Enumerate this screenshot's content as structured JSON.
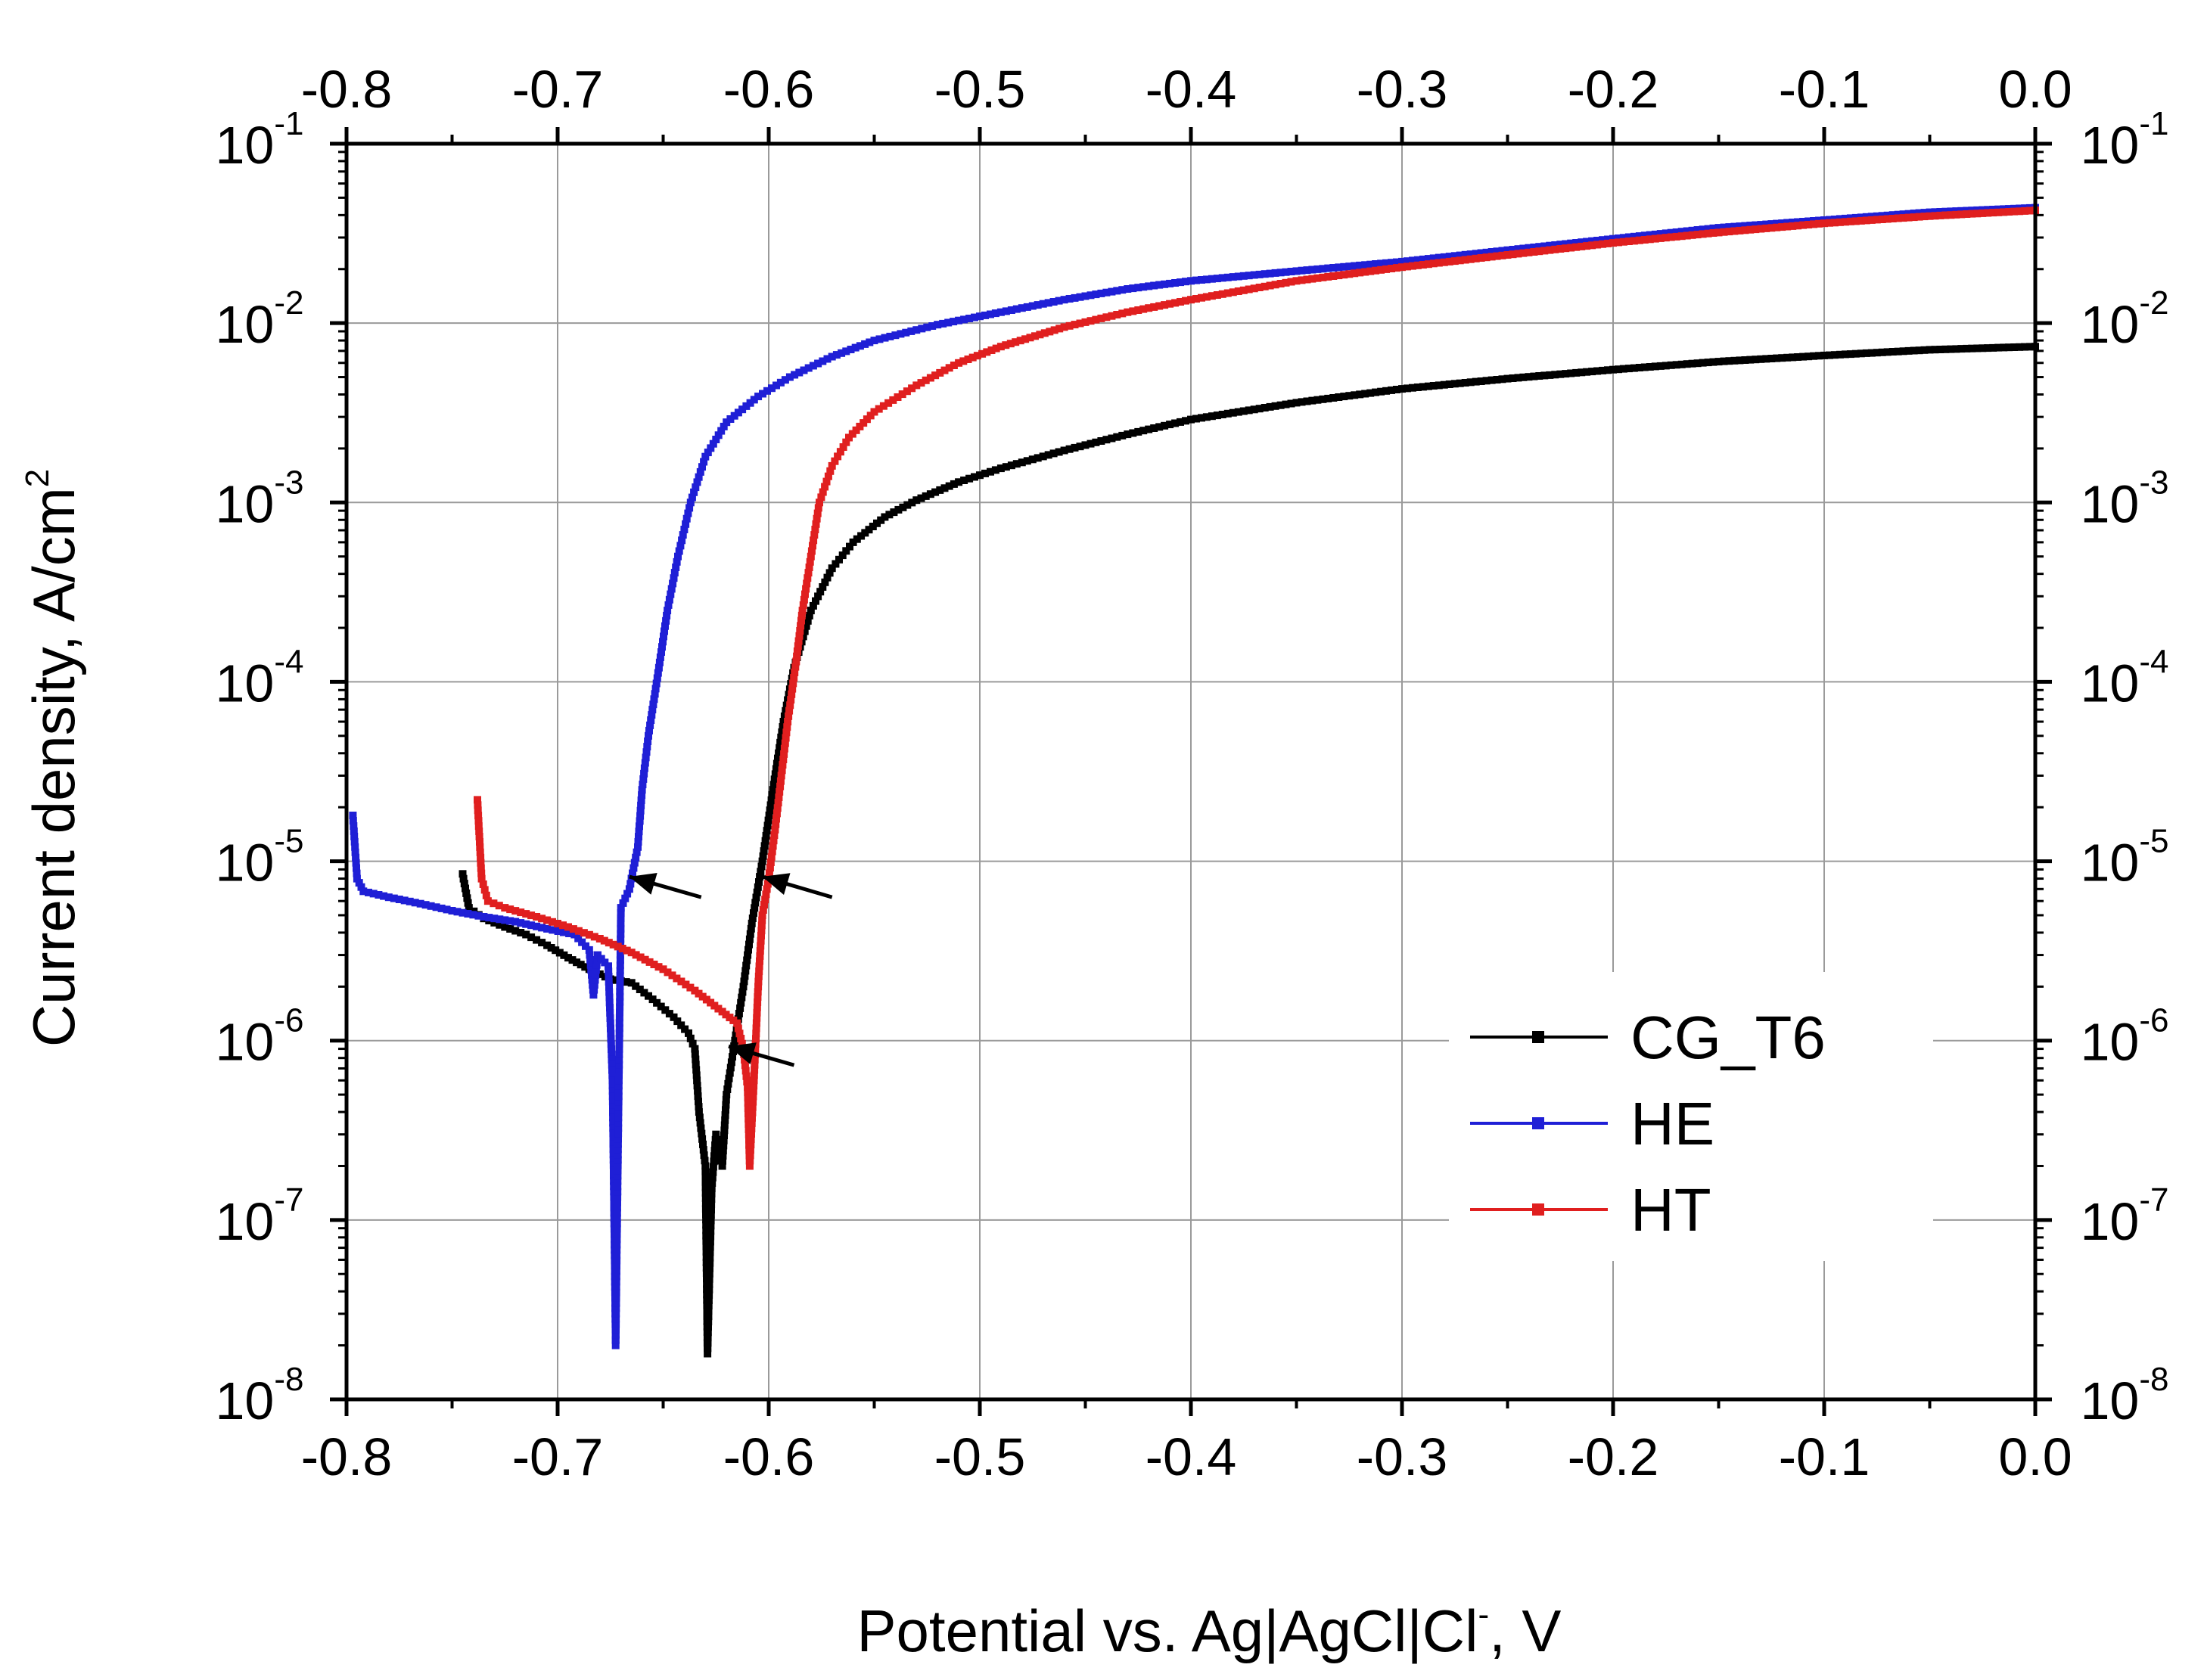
{
  "chart_data": {
    "type": "line",
    "xlabel": "Potential vs. Ag|AgCl|Cl",
    "xlabel_superscript": "-",
    "xlabel_suffix": ", V",
    "ylabel": "Current density, A/cm",
    "ylabel_superscript": "2",
    "yscale": "log",
    "xlim": [
      -0.8,
      0.0
    ],
    "ylim": [
      1e-08,
      0.1
    ],
    "grid": true,
    "legend_position": "lower-right",
    "x_ticks": [
      "-0.8",
      "-0.7",
      "-0.6",
      "-0.5",
      "-0.4",
      "-0.3",
      "-0.2",
      "-0.1",
      "0.0"
    ],
    "y_ticks": [
      {
        "base": "10",
        "exp": "-8"
      },
      {
        "base": "10",
        "exp": "-7"
      },
      {
        "base": "10",
        "exp": "-6"
      },
      {
        "base": "10",
        "exp": "-5"
      },
      {
        "base": "10",
        "exp": "-4"
      },
      {
        "base": "10",
        "exp": "-3"
      },
      {
        "base": "10",
        "exp": "-2"
      },
      {
        "base": "10",
        "exp": "-1"
      }
    ],
    "series": [
      {
        "name": "CG_T6",
        "color": "#000000",
        "points": [
          [
            -0.745,
            8.5e-06
          ],
          [
            -0.742,
            5.5e-06
          ],
          [
            -0.735,
            4.8e-06
          ],
          [
            -0.725,
            4.3e-06
          ],
          [
            -0.715,
            3.9e-06
          ],
          [
            -0.705,
            3.4e-06
          ],
          [
            -0.695,
            2.9e-06
          ],
          [
            -0.685,
            2.5e-06
          ],
          [
            -0.675,
            2.2e-06
          ],
          [
            -0.665,
            2.1e-06
          ],
          [
            -0.655,
            1.7e-06
          ],
          [
            -0.645,
            1.35e-06
          ],
          [
            -0.638,
            1.1e-06
          ],
          [
            -0.635,
            9e-07
          ],
          [
            -0.633,
            4e-07
          ],
          [
            -0.63,
            2e-07
          ],
          [
            -0.629,
            1.8e-08
          ],
          [
            -0.627,
            1.5e-07
          ],
          [
            -0.625,
            3e-07
          ],
          [
            -0.622,
            2e-07
          ],
          [
            -0.62,
            5e-07
          ],
          [
            -0.616,
            1e-06
          ],
          [
            -0.612,
            2e-06
          ],
          [
            -0.608,
            4.5e-06
          ],
          [
            -0.603,
            1e-05
          ],
          [
            -0.598,
            2.5e-05
          ],
          [
            -0.593,
            6e-05
          ],
          [
            -0.588,
            0.00012
          ],
          [
            -0.58,
            0.00025
          ],
          [
            -0.57,
            0.00043
          ],
          [
            -0.56,
            0.0006
          ],
          [
            -0.545,
            0.00083
          ],
          [
            -0.53,
            0.00103
          ],
          [
            -0.51,
            0.0013
          ],
          [
            -0.49,
            0.00155
          ],
          [
            -0.46,
            0.00195
          ],
          [
            -0.43,
            0.0024
          ],
          [
            -0.4,
            0.0029
          ],
          [
            -0.35,
            0.0036
          ],
          [
            -0.3,
            0.0043
          ],
          [
            -0.25,
            0.0049
          ],
          [
            -0.2,
            0.0055
          ],
          [
            -0.15,
            0.0061
          ],
          [
            -0.1,
            0.0066
          ],
          [
            -0.05,
            0.0071
          ],
          [
            0.0,
            0.0074
          ]
        ]
      },
      {
        "name": "HE",
        "color": "#1f1fd6",
        "points": [
          [
            -0.797,
            1.8e-05
          ],
          [
            -0.795,
            8e-06
          ],
          [
            -0.792,
            6.8e-06
          ],
          [
            -0.78,
            6.3e-06
          ],
          [
            -0.765,
            5.8e-06
          ],
          [
            -0.75,
            5.3e-06
          ],
          [
            -0.735,
            4.9e-06
          ],
          [
            -0.72,
            4.6e-06
          ],
          [
            -0.705,
            4.2e-06
          ],
          [
            -0.692,
            3.9e-06
          ],
          [
            -0.685,
            3.2e-06
          ],
          [
            -0.683,
            1.8e-06
          ],
          [
            -0.681,
            3e-06
          ],
          [
            -0.676,
            2.6e-06
          ],
          [
            -0.674,
            6e-07
          ],
          [
            -0.6725,
            2e-08
          ],
          [
            -0.671,
            6e-07
          ],
          [
            -0.67,
            5.5e-06
          ],
          [
            -0.666,
            7e-06
          ],
          [
            -0.662,
            1.2e-05
          ],
          [
            -0.66,
            2.5e-05
          ],
          [
            -0.657,
            5e-05
          ],
          [
            -0.652,
            0.00012
          ],
          [
            -0.648,
            0.00025
          ],
          [
            -0.643,
            0.0005
          ],
          [
            -0.637,
            0.001
          ],
          [
            -0.63,
            0.0018
          ],
          [
            -0.62,
            0.0028
          ],
          [
            -0.605,
            0.0039
          ],
          [
            -0.59,
            0.005
          ],
          [
            -0.57,
            0.0065
          ],
          [
            -0.55,
            0.008
          ],
          [
            -0.52,
            0.0098
          ],
          [
            -0.49,
            0.0115
          ],
          [
            -0.46,
            0.0135
          ],
          [
            -0.43,
            0.0155
          ],
          [
            -0.4,
            0.0172
          ],
          [
            -0.35,
            0.0195
          ],
          [
            -0.3,
            0.022
          ],
          [
            -0.25,
            0.0255
          ],
          [
            -0.2,
            0.0295
          ],
          [
            -0.15,
            0.034
          ],
          [
            -0.1,
            0.0375
          ],
          [
            -0.05,
            0.0415
          ],
          [
            0.0,
            0.044
          ]
        ]
      },
      {
        "name": "HT",
        "color": "#e01f1f",
        "points": [
          [
            -0.738,
            2.2e-05
          ],
          [
            -0.736,
            8e-06
          ],
          [
            -0.733,
            6e-06
          ],
          [
            -0.725,
            5.5e-06
          ],
          [
            -0.71,
            4.9e-06
          ],
          [
            -0.695,
            4.3e-06
          ],
          [
            -0.68,
            3.7e-06
          ],
          [
            -0.665,
            3.1e-06
          ],
          [
            -0.65,
            2.5e-06
          ],
          [
            -0.635,
            1.9e-06
          ],
          [
            -0.622,
            1.45e-06
          ],
          [
            -0.615,
            1.25e-06
          ],
          [
            -0.612,
            9e-07
          ],
          [
            -0.61,
            5.5e-07
          ],
          [
            -0.609,
            2e-07
          ],
          [
            -0.607,
            6e-07
          ],
          [
            -0.605,
            2e-06
          ],
          [
            -0.603,
            5e-06
          ],
          [
            -0.6,
            8e-06
          ],
          [
            -0.597,
            1.5e-05
          ],
          [
            -0.594,
            3e-05
          ],
          [
            -0.591,
            6e-05
          ],
          [
            -0.587,
            0.00013
          ],
          [
            -0.584,
            0.00025
          ],
          [
            -0.58,
            0.0005
          ],
          [
            -0.576,
            0.001
          ],
          [
            -0.57,
            0.0016
          ],
          [
            -0.562,
            0.0023
          ],
          [
            -0.55,
            0.0032
          ],
          [
            -0.53,
            0.0045
          ],
          [
            -0.51,
            0.006
          ],
          [
            -0.49,
            0.0074
          ],
          [
            -0.46,
            0.0095
          ],
          [
            -0.43,
            0.0115
          ],
          [
            -0.4,
            0.0135
          ],
          [
            -0.35,
            0.0172
          ],
          [
            -0.3,
            0.0205
          ],
          [
            -0.25,
            0.024
          ],
          [
            -0.2,
            0.028
          ],
          [
            -0.15,
            0.032
          ],
          [
            -0.1,
            0.036
          ],
          [
            -0.05,
            0.0395
          ],
          [
            0.0,
            0.0425
          ]
        ]
      }
    ],
    "annotations": [
      {
        "type": "arrow",
        "from": [
          -0.632,
          6.3e-06
        ],
        "to": [
          -0.666,
          8.2e-06
        ]
      },
      {
        "type": "arrow",
        "from": [
          -0.57,
          6.3e-06
        ],
        "to": [
          -0.603,
          8.2e-06
        ]
      },
      {
        "type": "arrow",
        "from": [
          -0.588,
          7.3e-07
        ],
        "to": [
          -0.619,
          9.3e-07
        ]
      }
    ]
  }
}
